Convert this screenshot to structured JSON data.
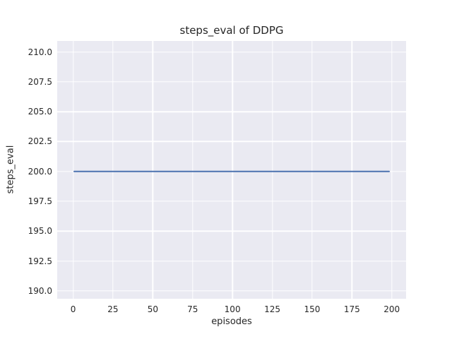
{
  "chart_data": {
    "type": "line",
    "title": "steps_eval of DDPG",
    "xlabel": "episodes",
    "ylabel": "steps_eval",
    "series": [
      {
        "name": "steps_eval",
        "color": "#4C72B0",
        "constant_value": 200,
        "x_start": 0,
        "x_end": 199,
        "points": [
          {
            "x": 0,
            "y": 200
          },
          {
            "x": 199,
            "y": 200
          }
        ]
      }
    ],
    "xlim": [
      -10,
      209
    ],
    "ylim": [
      189.35,
      210.92
    ],
    "xticks": [
      0,
      25,
      50,
      75,
      100,
      125,
      150,
      175,
      200
    ],
    "xtick_labels": [
      "0",
      "25",
      "50",
      "75",
      "100",
      "125",
      "150",
      "175",
      "200"
    ],
    "yticks": [
      190.0,
      192.5,
      195.0,
      197.5,
      200.0,
      202.5,
      205.0,
      207.5,
      210.0
    ],
    "ytick_labels": [
      "190.0",
      "192.5",
      "195.0",
      "197.5",
      "200.0",
      "202.5",
      "205.0",
      "207.5",
      "210.0"
    ],
    "grid": true,
    "legend": null,
    "style": {
      "figure_bg": "#FFFFFF",
      "plot_bg": "#EAEAF2",
      "grid_color": "#FFFFFF",
      "text_color": "#262626",
      "line_color": "#4C72B0"
    }
  }
}
